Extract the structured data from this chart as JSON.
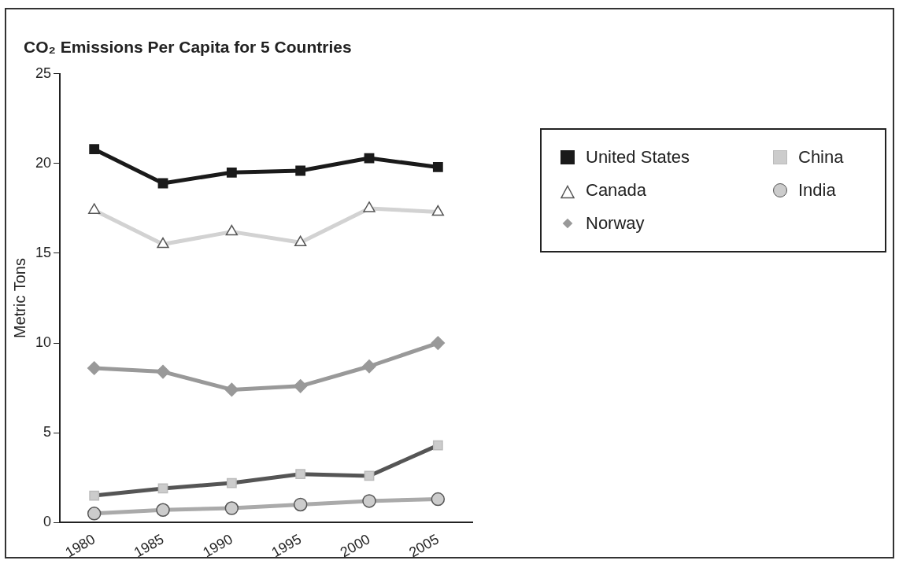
{
  "chart_data": {
    "type": "line",
    "title": "CO₂ Emissions Per Capita for 5 Countries",
    "ylabel": "Metric Tons",
    "categories": [
      "1980",
      "1985",
      "1990",
      "1995",
      "2000",
      "2005"
    ],
    "series": [
      {
        "name": "United States",
        "color": "#1a1a1a",
        "marker": "square",
        "values": [
          20.8,
          18.9,
          19.5,
          19.6,
          20.3,
          19.8
        ]
      },
      {
        "name": "Canada",
        "color": "#d2d2d2",
        "marker": "triangle",
        "values": [
          17.4,
          15.5,
          16.2,
          15.6,
          17.5,
          17.3
        ]
      },
      {
        "name": "Norway",
        "color": "#999999",
        "marker": "diamond",
        "values": [
          8.6,
          8.4,
          7.4,
          7.6,
          8.7,
          10.0
        ]
      },
      {
        "name": "China",
        "color": "#555555",
        "marker": "square",
        "values": [
          1.5,
          1.9,
          2.2,
          2.7,
          2.6,
          4.3
        ]
      },
      {
        "name": "India",
        "color": "#aaaaaa",
        "marker": "circle",
        "values": [
          0.5,
          0.7,
          0.8,
          1.0,
          1.2,
          1.3
        ]
      }
    ],
    "ylim": [
      0,
      25
    ],
    "yticks": [
      0,
      5,
      10,
      15,
      20,
      25
    ],
    "grid": false,
    "legend": "top right"
  }
}
